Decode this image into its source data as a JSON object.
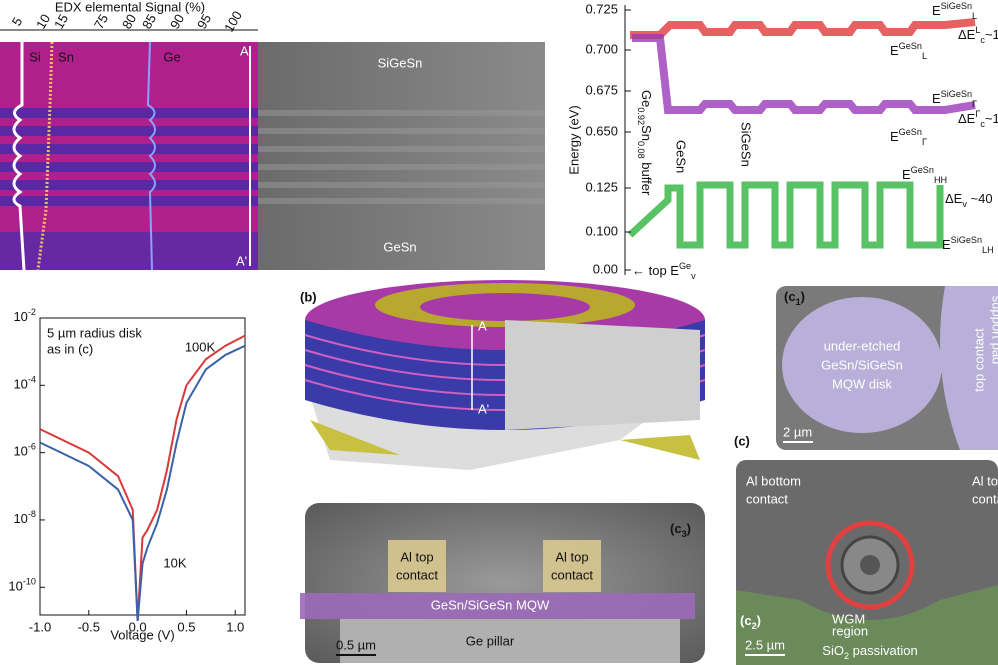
{
  "chart_data": {
    "type": "line",
    "xlabel": "Voltage (V)",
    "annotation": [
      "5 µm radius disk",
      "as in (c)"
    ],
    "x": [
      -1,
      -0.5,
      -0.2,
      -0.05,
      0,
      0.05,
      0.1,
      0.2,
      0.3,
      0.4,
      0.5,
      0.7,
      0.9,
      1.1
    ],
    "series": [
      {
        "name": "100K",
        "color": "#d83a3a",
        "values": [
          5e-06,
          1e-06,
          2e-07,
          2e-08,
          1e-11,
          3e-09,
          5e-09,
          2e-08,
          3e-07,
          1e-05,
          0.0001,
          0.0006,
          0.0015,
          0.003
        ]
      },
      {
        "name": "10K",
        "color": "#3a62a8",
        "values": [
          2e-06,
          4e-07,
          8e-08,
          1e-08,
          1e-11,
          5e-10,
          1.5e-09,
          8e-09,
          8e-08,
          2e-06,
          3e-05,
          0.0003,
          0.0008,
          0.0015
        ]
      }
    ],
    "xlim": [
      -1,
      1.1
    ],
    "xticks": [
      {
        "value": -1,
        "label": "-1.0"
      },
      -0.5,
      {
        "value": 0,
        "label": "0.0"
      },
      0.5,
      {
        "value": 1,
        "label": "1.0"
      }
    ],
    "ylim": [
      1.5e-11,
      0.01
    ],
    "log_y": true,
    "yticks": [
      {
        "value": 0.01,
        "label": "10-2"
      },
      {
        "value": 0.0001,
        "label": "10-4"
      },
      {
        "value": 1e-06,
        "label": "10-6"
      },
      {
        "value": 1e-08,
        "label": "10-8"
      },
      {
        "value": 1e-10,
        "label": "10-10"
      }
    ]
  },
  "panels": {
    "edx": {
      "axis_title": "EDX elemental Signal (%)",
      "ticks": [
        5,
        10,
        15,
        75,
        80,
        85,
        90,
        95,
        100
      ],
      "elements": [
        "Si",
        "Sn",
        "Ge"
      ],
      "top": "A",
      "bottom": "A'"
    },
    "tem": {
      "top": "SiGeSn",
      "bottom": "GeSn"
    },
    "band": {
      "ylabel": "Energy (eV)",
      "ticks": [
        "0.725",
        "0.700",
        "0.675",
        "0.650",
        "0.125",
        "0.100",
        "0.00"
      ],
      "EL_SiGeSn": [
        {
          "text": "E",
          "pos": "base"
        },
        {
          "text": "SiGeSn",
          "pos": "sup"
        },
        {
          "text": "L",
          "pos": "sub"
        }
      ],
      "EL_GeSn": [
        {
          "text": "E",
          "pos": "base"
        },
        {
          "text": "GeSn",
          "pos": "sup"
        },
        {
          "text": "L",
          "pos": "sub"
        }
      ],
      "EG_SiGeSn": [
        {
          "text": "E",
          "pos": "base"
        },
        {
          "text": "SiGeSn",
          "pos": "sup"
        },
        {
          "text": "Γ",
          "pos": "sub"
        }
      ],
      "EG_GeSn": [
        {
          "text": "E",
          "pos": "base"
        },
        {
          "text": "GeSn",
          "pos": "sup"
        },
        {
          "text": "Γ",
          "pos": "sub"
        }
      ],
      "EHH_GeSn": [
        {
          "text": "E",
          "pos": "base"
        },
        {
          "text": "GeSn",
          "pos": "sup"
        },
        {
          "text": "HH",
          "pos": "sub"
        }
      ],
      "ELH_SiGeSn": [
        {
          "text": "E",
          "pos": "base"
        },
        {
          "text": "SiGeSn",
          "pos": "sup"
        },
        {
          "text": "LH",
          "pos": "sub"
        }
      ],
      "dEcL": [
        {
          "text": "ΔE",
          "pos": "base"
        },
        {
          "text": "L",
          "pos": "sup"
        },
        {
          "text": "c",
          "pos": "sub"
        },
        {
          "text": "~1",
          "pos": "base"
        }
      ],
      "dEcG": [
        {
          "text": "ΔE",
          "pos": "base"
        },
        {
          "text": "Γ",
          "pos": "sup"
        },
        {
          "text": "c",
          "pos": "sub"
        },
        {
          "text": "~1",
          "pos": "base"
        }
      ],
      "dEv": [
        {
          "text": "ΔE",
          "pos": "base"
        },
        {
          "text": "v",
          "pos": "sub"
        },
        {
          "text": " ~40",
          "pos": "base"
        }
      ],
      "buffer": [
        {
          "text": "Ge",
          "pos": "base"
        },
        {
          "text": "0.92",
          "pos": "sub"
        },
        {
          "text": "Sn",
          "pos": "base"
        },
        {
          "text": "0.08",
          "pos": "sub"
        },
        {
          "text": " buffer",
          "pos": "base"
        }
      ],
      "layer1": "GeSn",
      "layer2": "SiGeSn",
      "topEv": [
        {
          "text": "← top E",
          "pos": "base"
        },
        {
          "text": "Ge",
          "pos": "sup"
        },
        {
          "text": "v",
          "pos": "sub"
        }
      ]
    },
    "b": {
      "label": "(b)",
      "top": "A",
      "bottom": "A'"
    },
    "c1": {
      "label": [
        {
          "text": "(c",
          "pos": "base"
        },
        {
          "text": "1",
          "pos": "sub"
        },
        {
          "text": ")",
          "pos": "base"
        }
      ],
      "disk": [
        "under-etched",
        "GeSn/SiGeSn",
        "MQW disk"
      ],
      "contact": "top contact",
      "pad": "support pad",
      "scale": "2 µm"
    },
    "c": {
      "label": "(c)",
      "bottom": [
        "Al bottom",
        "contact"
      ],
      "top": [
        "Al to",
        "conta"
      ],
      "wgm": [
        "WGM",
        "region"
      ],
      "sio2": [
        {
          "text": "SiO",
          "pos": "base"
        },
        {
          "text": "2",
          "pos": "sub"
        },
        {
          "text": " passivation",
          "pos": "base"
        }
      ],
      "label2": [
        {
          "text": "(c",
          "pos": "base"
        },
        {
          "text": "2",
          "pos": "sub"
        },
        {
          "text": ")",
          "pos": "base"
        }
      ],
      "scale": "2.5 µm"
    },
    "c3": {
      "label": [
        {
          "text": "(c",
          "pos": "base"
        },
        {
          "text": "3",
          "pos": "sub"
        },
        {
          "text": ")",
          "pos": "base"
        }
      ],
      "contact_left": [
        "Al top",
        "contact"
      ],
      "contact_right": [
        "Al top",
        "contact"
      ],
      "mqw": "GeSn/SiGeSn MQW",
      "pillar": "Ge pillar",
      "scale": "0.5 µm"
    }
  }
}
